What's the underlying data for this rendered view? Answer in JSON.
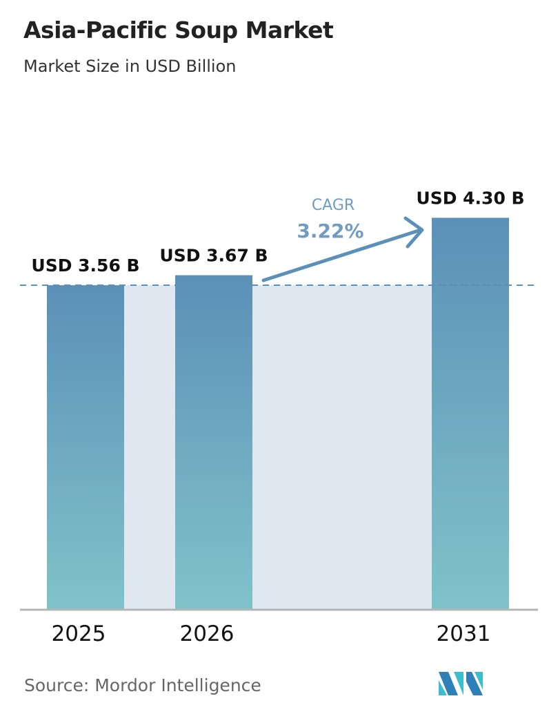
{
  "chart_data": {
    "type": "bar",
    "title": "Asia-Pacific Soup Market",
    "subtitle": "Market Size in USD Billion",
    "categories": [
      "2025",
      "2026",
      "2031"
    ],
    "values": [
      3.56,
      3.67,
      4.3
    ],
    "data_labels": [
      "USD 3.56 B",
      "USD 3.67 B",
      "USD 4.30 B"
    ],
    "annotation": {
      "label": "CAGR",
      "value": "3.22%"
    },
    "ylim": [
      0,
      4.5
    ],
    "grid": false,
    "colors": {
      "bar_top": "#5b90b8",
      "bar_bottom": "#80c3c9",
      "band": "#dfe8f0",
      "accent": "#5b90b8"
    }
  },
  "source": "Source:  Mordor Intelligence",
  "logo_text": "Mordor Intelligence"
}
